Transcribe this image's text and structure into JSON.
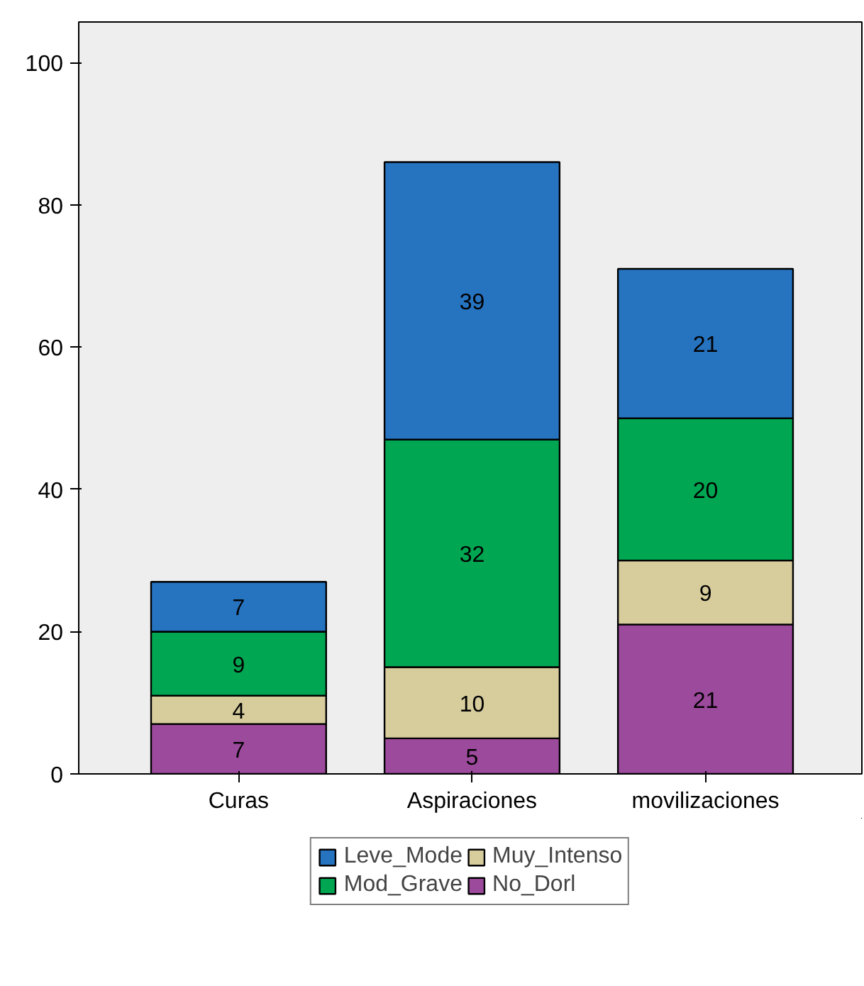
{
  "chart_data": {
    "type": "bar",
    "stacked": true,
    "categories": [
      "Curas",
      "Aspiraciones",
      "movilizaciones"
    ],
    "series": [
      {
        "name": "No_Dorl",
        "color": "#9c4a9c",
        "values": [
          7,
          5,
          21
        ]
      },
      {
        "name": "Muy_Intenso",
        "color": "#d6cc9c",
        "values": [
          4,
          10,
          9
        ]
      },
      {
        "name": "Mod_Grave",
        "color": "#00a651",
        "values": [
          9,
          32,
          20
        ]
      },
      {
        "name": "Leve_Mode",
        "color": "#2673c0",
        "values": [
          7,
          39,
          21
        ]
      }
    ],
    "ylim": [
      0,
      105.7
    ],
    "yticks": [
      0,
      20,
      40,
      60,
      80,
      100
    ],
    "grid": false,
    "legend": "bottom",
    "data_labels": true
  }
}
